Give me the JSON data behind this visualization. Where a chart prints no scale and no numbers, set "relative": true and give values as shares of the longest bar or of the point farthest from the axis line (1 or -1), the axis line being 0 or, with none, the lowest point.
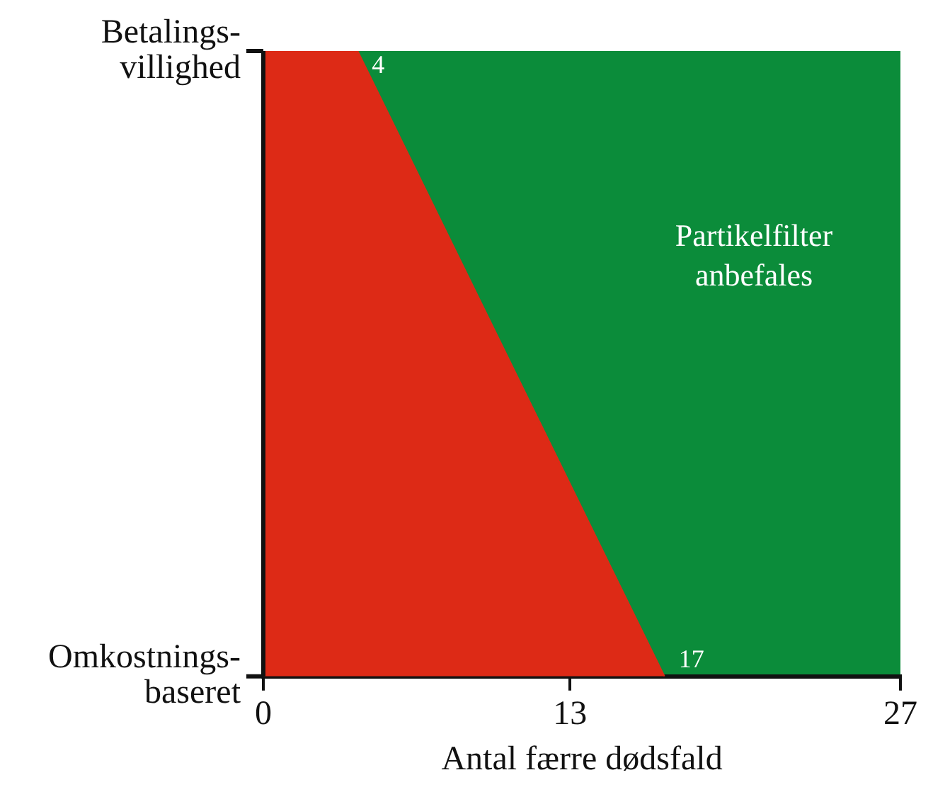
{
  "chart_data": {
    "type": "area",
    "xlabel": "Antal færre dødsfald",
    "x": [
      0,
      4,
      17
    ],
    "series": [
      {
        "color": "#dd2a16",
        "values": [
          1,
          1,
          0
        ]
      }
    ],
    "bands": [
      {
        "axis": "x",
        "from": 0,
        "to": 27,
        "color": "#0b8c3a",
        "label": "Partikelfilter anbefales"
      }
    ],
    "relative": true,
    "xlim": [
      0,
      27
    ],
    "xticks": [
      0,
      13,
      27
    ],
    "grid": false,
    "legend": false,
    "annotations": [
      {
        "text": "4",
        "x": 4,
        "y": 1
      },
      {
        "text": "17",
        "x": 17,
        "y": 0
      },
      "Betalings-villighed",
      "Omkostnings-baseret"
    ]
  }
}
